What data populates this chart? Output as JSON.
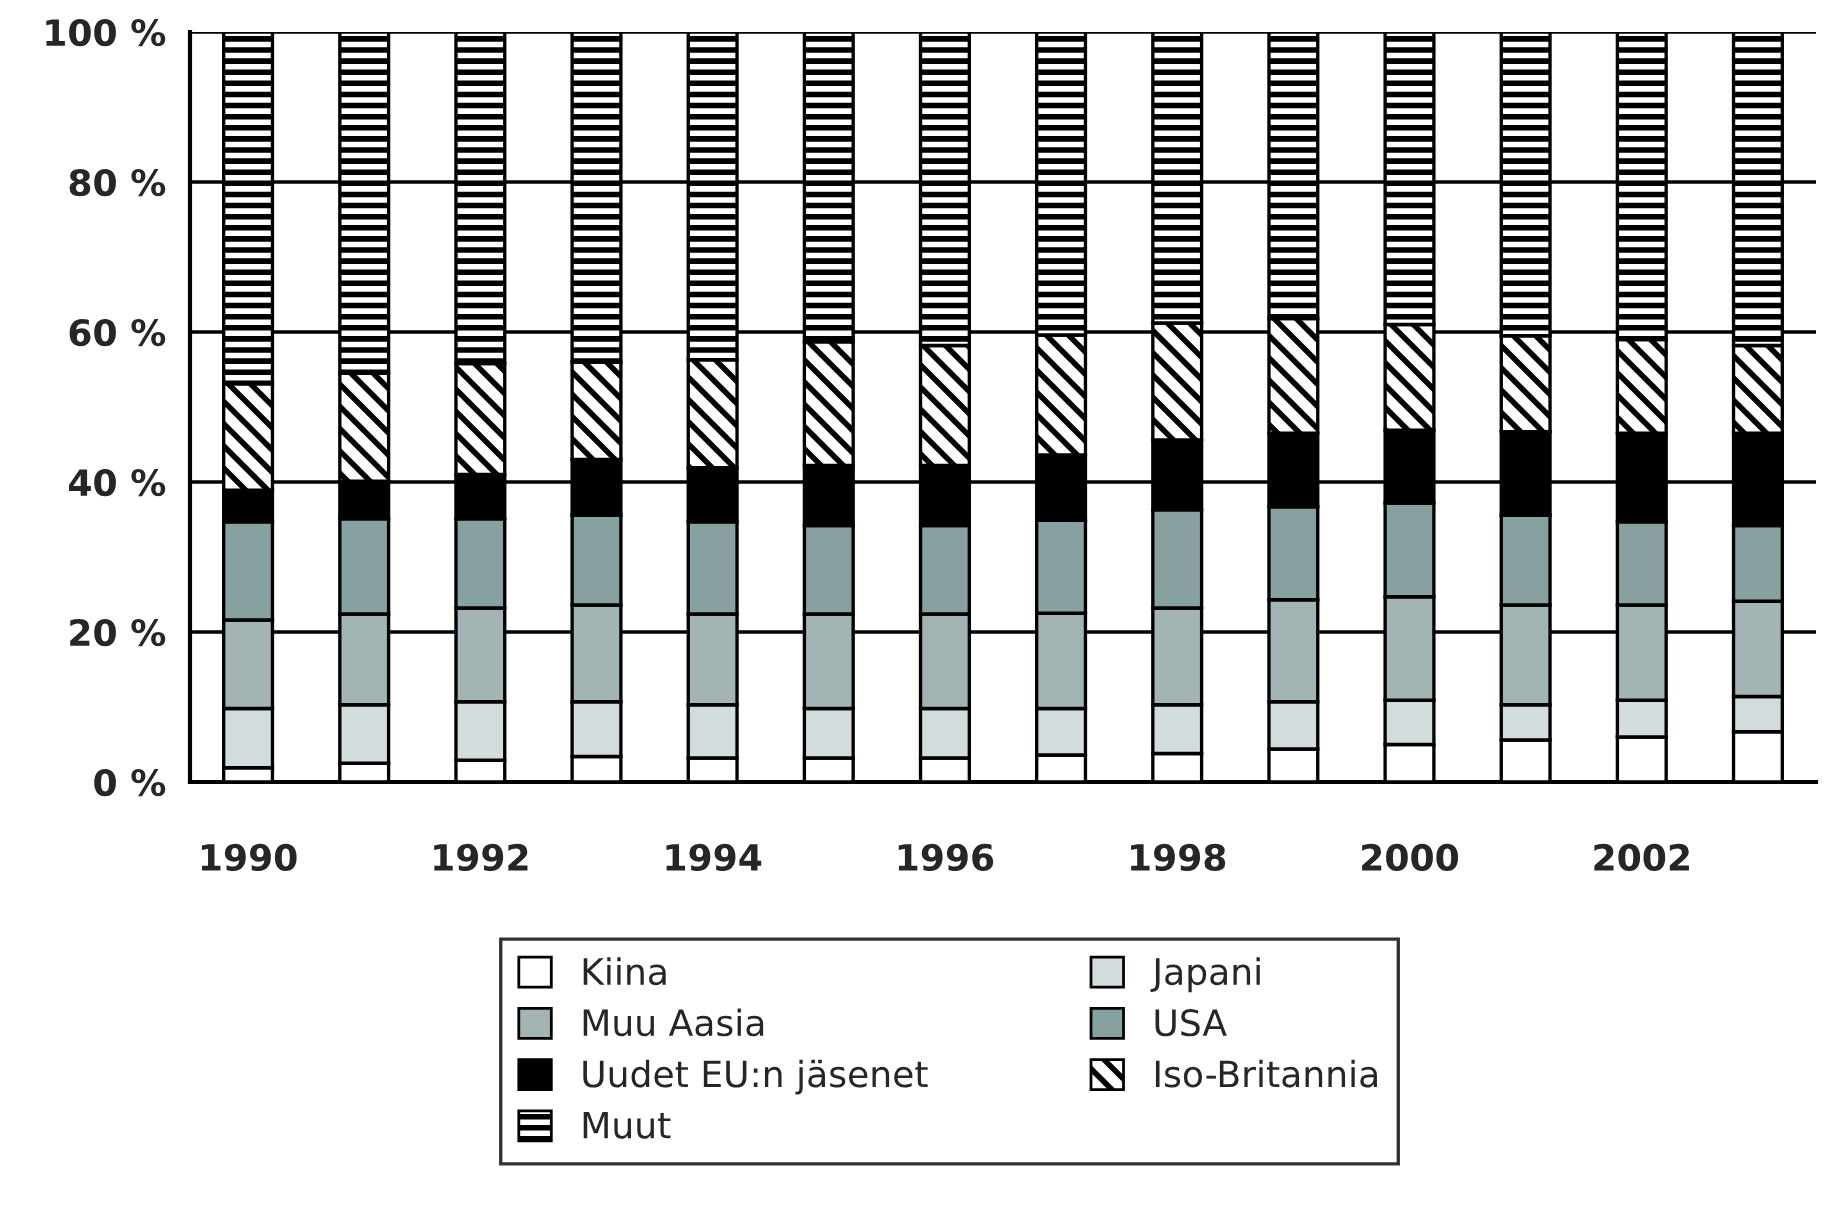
{
  "chart_data": {
    "type": "bar",
    "stacked": true,
    "categories": [
      "1990",
      null,
      "1992",
      null,
      "1994",
      null,
      "1996",
      null,
      "1998",
      null,
      "2000",
      null,
      "2002",
      null
    ],
    "series": [
      {
        "name": "Kiina",
        "color": "#ffffff",
        "values": [
          1.9,
          2.5,
          2.9,
          3.4,
          3.2,
          3.2,
          3.2,
          3.6,
          3.8,
          4.4,
          5.0,
          5.6,
          6.0,
          6.7
        ]
      },
      {
        "name": "Japani",
        "color": "#d2dcdc",
        "values": [
          7.9,
          7.8,
          7.8,
          7.3,
          7.1,
          6.6,
          6.6,
          6.2,
          6.5,
          6.3,
          5.9,
          4.7,
          4.9,
          4.7
        ]
      },
      {
        "name": "Muu Aasia",
        "color": "#a3b4b4",
        "values": [
          11.8,
          12.1,
          12.5,
          12.9,
          12.1,
          12.6,
          12.6,
          12.7,
          12.9,
          13.6,
          13.8,
          13.3,
          12.7,
          12.7
        ]
      },
      {
        "name": "USA",
        "color": "#87a0a0",
        "values": [
          13.1,
          12.7,
          11.9,
          12.0,
          12.3,
          11.8,
          11.8,
          12.4,
          13.1,
          12.4,
          12.5,
          12.0,
          11.1,
          10.1
        ]
      },
      {
        "name": "Uudet EU:n jäsenet",
        "color": "#000000",
        "values": [
          4.2,
          5.0,
          5.9,
          7.4,
          7.2,
          8.0,
          8.0,
          8.7,
          9.3,
          9.8,
          9.7,
          11.1,
          11.8,
          12.3
        ]
      },
      {
        "name": "Iso-Britannia",
        "color": "#000000",
        "values": [
          14.2,
          14.4,
          14.8,
          13.0,
          14.4,
          16.5,
          16.0,
          16.0,
          15.6,
          15.3,
          14.1,
          12.8,
          12.5,
          11.7
        ]
      },
      {
        "name": "Muut",
        "color": "#000000",
        "values": [
          46.9,
          45.5,
          44.2,
          44.0,
          43.7,
          41.3,
          41.8,
          40.4,
          38.8,
          38.2,
          39.0,
          40.5,
          41.0,
          41.8
        ]
      }
    ],
    "ylim": [
      0,
      100
    ],
    "yticks": [
      {
        "value": 0,
        "label": "0 %"
      },
      {
        "value": 20,
        "label": "20 %"
      },
      {
        "value": 40,
        "label": "40 %"
      },
      {
        "value": 60,
        "label": "60 %"
      },
      {
        "value": 80,
        "label": "80 %"
      },
      {
        "value": 100,
        "label": "100 %"
      }
    ],
    "grid": "y",
    "legend": "bottom"
  }
}
